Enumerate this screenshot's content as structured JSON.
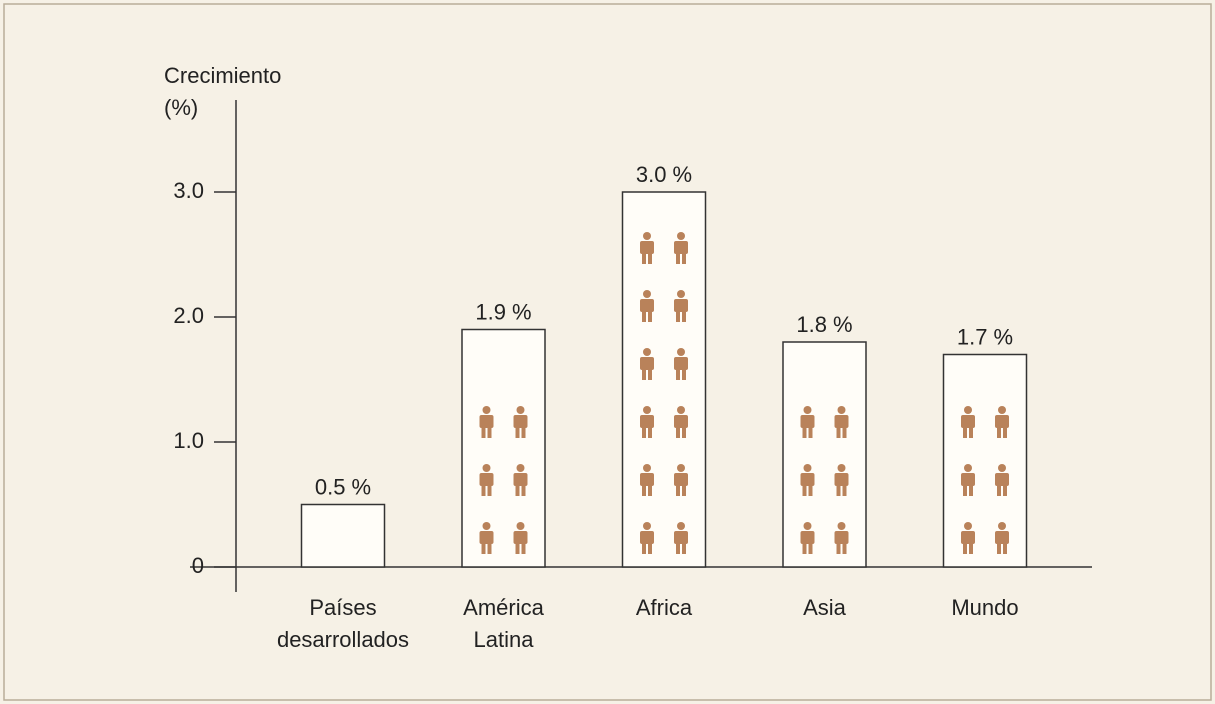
{
  "chart_data": {
    "type": "bar",
    "ylabel": "Crecimiento\n(%)",
    "categories": [
      "Países\ndesarrollados",
      "América\nLatina",
      "Africa",
      "Asia",
      "Mundo"
    ],
    "values": [
      0.5,
      1.9,
      3.0,
      1.8,
      1.7
    ],
    "value_labels": [
      "0.5 %",
      "1.9 %",
      "3.0 %",
      "1.8 %",
      "1.7 %"
    ],
    "ylim": [
      0,
      3.7
    ],
    "yticks": [
      0,
      {
        "value": 1,
        "label": "1.0"
      },
      {
        "value": 2,
        "label": "2.0"
      },
      {
        "value": 3,
        "label": "3.0"
      }
    ],
    "color": "#fffdf8",
    "icon_color": "#b9825a"
  }
}
